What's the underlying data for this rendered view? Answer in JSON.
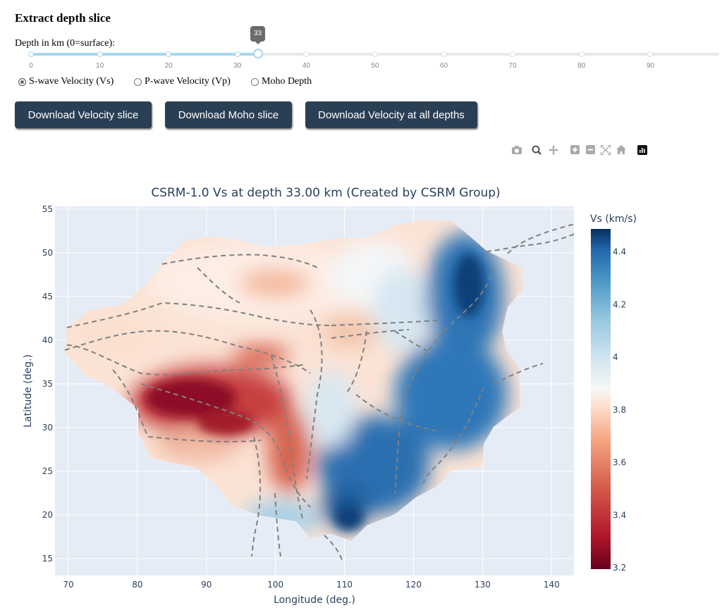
{
  "header": {
    "title": "Extract depth slice"
  },
  "slider": {
    "label": "Depth in km (0=surface):",
    "value": 33,
    "min": 0,
    "max": 100,
    "tooltip": "33",
    "marks": [
      "0",
      "10",
      "20",
      "30",
      "40",
      "50",
      "60",
      "70",
      "80",
      "90"
    ]
  },
  "radios": {
    "options": [
      "S-wave Velocity (Vs)",
      "P-wave Velocity (Vp)",
      "Moho Depth"
    ],
    "selected": "S-wave Velocity (Vs)"
  },
  "buttons": {
    "velocity": "Download Velocity slice",
    "moho": "Download Moho slice",
    "all": "Download Velocity at all depths"
  },
  "modebar": {
    "icons": [
      "camera-icon",
      "zoom-icon",
      "pan-icon",
      "zoom-in-icon",
      "zoom-out-icon",
      "autoscale-icon",
      "home-icon",
      "plotly-logo-icon"
    ]
  },
  "chart": {
    "title": "CSRM-1.0 Vs at depth 33.00 km (Created by CSRM Group)",
    "xlabel": "Longitude (deg.)",
    "ylabel": "Latitude (deg.)",
    "x_ticks": [
      "70",
      "80",
      "90",
      "100",
      "110",
      "120",
      "130",
      "140"
    ],
    "y_ticks": [
      "15",
      "20",
      "25",
      "30",
      "35",
      "40",
      "45",
      "50",
      "55"
    ],
    "colorbar_title": "Vs (km/s)",
    "colorbar_ticks": [
      "3.2",
      "3.4",
      "3.6",
      "3.8",
      "4",
      "4.2",
      "4.4"
    ],
    "colors": {
      "low": "#67001f",
      "mid": "#f7f7f7",
      "high": "#053061",
      "fault": "#808080",
      "plot_bg": "#e5ecf6"
    }
  },
  "chart_data": {
    "type": "heatmap",
    "title": "CSRM-1.0 Vs at depth 33.00 km (Created by CSRM Group)",
    "xlabel": "Longitude (deg.)",
    "ylabel": "Latitude (deg.)",
    "xlim": [
      68,
      143
    ],
    "ylim": [
      13,
      55.5
    ],
    "colorbar": {
      "title": "Vs (km/s)",
      "range": [
        3.2,
        4.5
      ],
      "colorscale": "RdBu"
    },
    "regions": [
      {
        "lon_range": [
          80,
          104
        ],
        "lat_range": [
          28,
          37
        ],
        "vs_approx": 3.3
      },
      {
        "lon_range": [
          70,
          110
        ],
        "lat_range": [
          38,
          52
        ],
        "vs_approx": 3.8
      },
      {
        "lon_range": [
          110,
          135
        ],
        "lat_range": [
          18,
          52
        ],
        "vs_approx": 4.3
      }
    ]
  }
}
